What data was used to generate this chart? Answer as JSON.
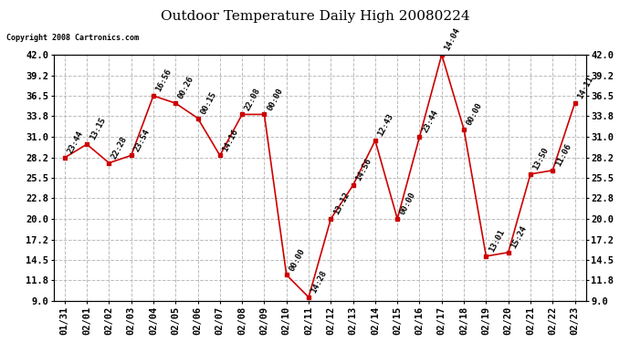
{
  "title": "Outdoor Temperature Daily High 20080224",
  "copyright": "Copyright 2008 Cartronics.com",
  "x_labels": [
    "01/31",
    "02/01",
    "02/02",
    "02/03",
    "02/04",
    "02/05",
    "02/06",
    "02/07",
    "02/08",
    "02/09",
    "02/10",
    "02/11",
    "02/12",
    "02/13",
    "02/14",
    "02/15",
    "02/16",
    "02/17",
    "02/18",
    "02/19",
    "02/20",
    "02/21",
    "02/22",
    "02/23"
  ],
  "y_values": [
    28.2,
    30.0,
    27.5,
    28.5,
    36.5,
    35.5,
    33.5,
    28.5,
    34.0,
    34.0,
    12.5,
    9.5,
    20.0,
    24.5,
    30.5,
    20.0,
    31.0,
    42.0,
    32.0,
    15.0,
    15.5,
    26.0,
    26.5,
    35.5
  ],
  "point_labels": [
    "23:44",
    "13:15",
    "22:28",
    "23:54",
    "16:56",
    "00:26",
    "00:15",
    "14:16",
    "22:08",
    "00:00",
    "00:00",
    "14:28",
    "13:12",
    "14:56",
    "12:43",
    "00:00",
    "23:44",
    "14:04",
    "00:00",
    "13:01",
    "15:24",
    "13:50",
    "11:06",
    "14:11"
  ],
  "line_color": "#cc0000",
  "marker_color": "#cc0000",
  "background_color": "#ffffff",
  "grid_color": "#bbbbbb",
  "ylim": [
    9.0,
    42.0
  ],
  "yticks": [
    9.0,
    11.8,
    14.5,
    17.2,
    20.0,
    22.8,
    25.5,
    28.2,
    31.0,
    33.8,
    36.5,
    39.2,
    42.0
  ],
  "title_fontsize": 11,
  "label_fontsize": 6.5,
  "tick_fontsize": 7.5,
  "copyright_fontsize": 6
}
